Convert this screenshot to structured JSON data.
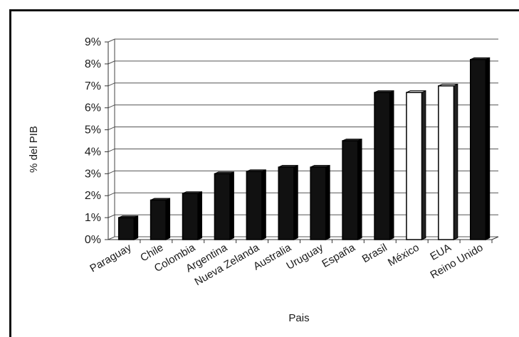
{
  "chart_data": {
    "type": "bar",
    "title": "",
    "xlabel": "Pais",
    "ylabel": "% del PIB",
    "ylim": [
      0,
      9
    ],
    "yticks": [
      "0%",
      "1%",
      "2%",
      "3%",
      "4%",
      "5%",
      "6%",
      "7%",
      "8%",
      "9%"
    ],
    "grid": true,
    "categories": [
      "Paraguay",
      "Chile",
      "Colombia",
      "Argentina",
      "Nueva Zelanda",
      "Australia",
      "Uruguay",
      "España",
      "Brasil",
      "México",
      "EUA",
      "Reino Unido"
    ],
    "values": [
      1.0,
      1.8,
      2.1,
      3.0,
      3.1,
      3.3,
      3.3,
      4.5,
      6.7,
      6.7,
      7.0,
      8.2
    ],
    "colors": [
      "#111111",
      "#111111",
      "#111111",
      "#111111",
      "#111111",
      "#111111",
      "#111111",
      "#111111",
      "#111111",
      "#ffffff",
      "#ffffff",
      "#111111"
    ]
  }
}
